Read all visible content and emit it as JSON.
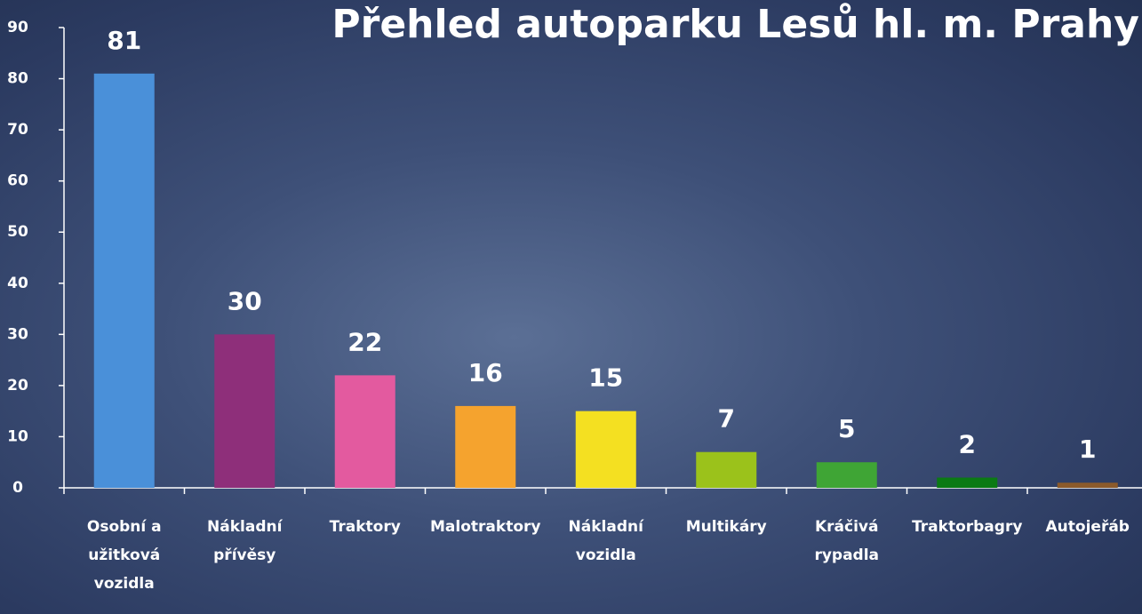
{
  "chart_data": {
    "type": "bar",
    "title": "Přehled autoparku Lesů hl. m. Prahy",
    "categories": [
      "Osobní a užitková vozidla",
      "Nákladní přívěsy",
      "Traktory",
      "Malotraktory",
      "Nákladní vozidla",
      "Multikáry",
      "Kráčivá rypadla",
      "Traktorbagry",
      "Autojeřáb"
    ],
    "values": [
      81,
      30,
      22,
      16,
      15,
      7,
      5,
      2,
      1
    ],
    "colors": [
      "#4a90d9",
      "#8e2f7a",
      "#e35a9f",
      "#f5a32e",
      "#f4e021",
      "#9bc21b",
      "#3fa535",
      "#0b7a14",
      "#8b5a2b"
    ],
    "ylim": [
      0,
      90
    ],
    "yticks": [
      0,
      10,
      20,
      30,
      40,
      50,
      60,
      70,
      80,
      90
    ],
    "grid": false
  }
}
